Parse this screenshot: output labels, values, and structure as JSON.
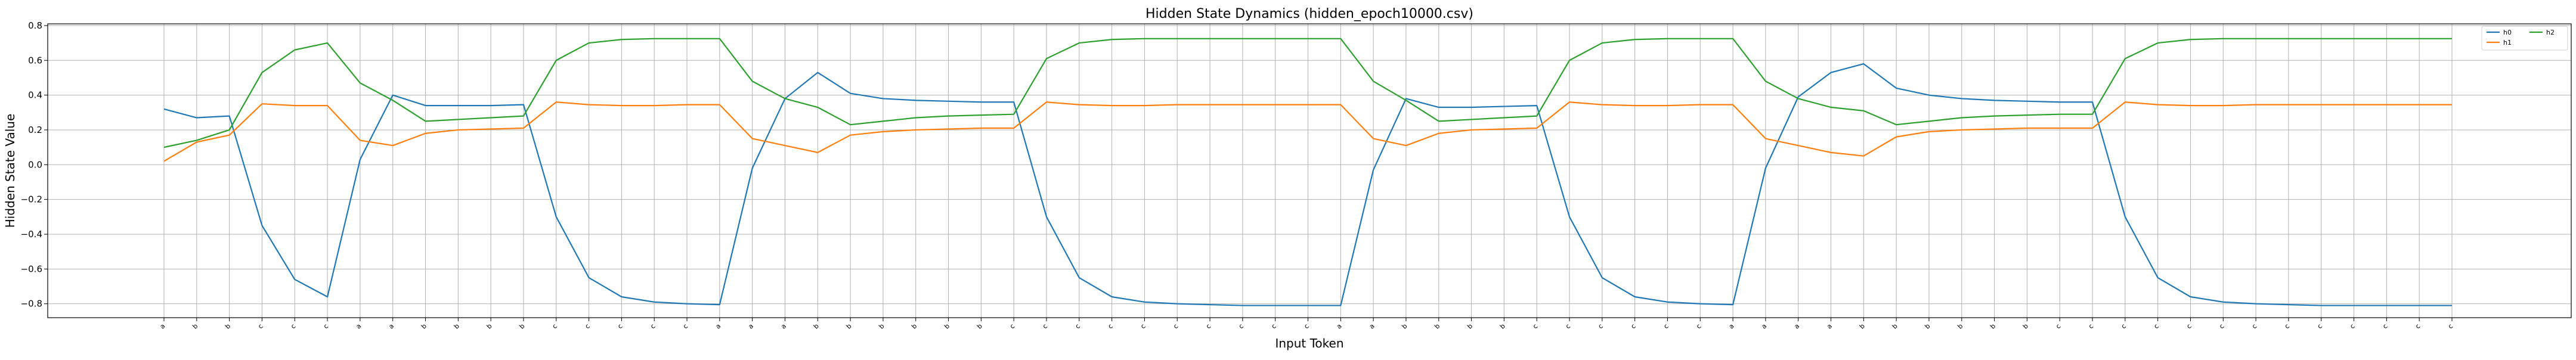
{
  "chart_data": {
    "type": "line",
    "title": "Hidden State Dynamics (hidden_epoch10000.csv)",
    "xlabel": "Input Token",
    "ylabel": "Hidden State Value",
    "ylim": [
      -0.88,
      0.81
    ],
    "yticks": [
      -0.8,
      -0.6,
      -0.4,
      -0.2,
      0.0,
      0.2,
      0.4,
      0.6,
      0.8
    ],
    "ytick_labels": [
      "−0.8",
      "−0.6",
      "−0.4",
      "−0.2",
      "0.0",
      "0.2",
      "0.4",
      "0.6",
      "0.8"
    ],
    "grid": true,
    "legend_position": "top-right",
    "categories": [
      "a",
      "b",
      "b",
      "c",
      "c",
      "c",
      "a",
      "a",
      "b",
      "b",
      "b",
      "b",
      "c",
      "c",
      "c",
      "c",
      "c",
      "a",
      "a",
      "a",
      "b",
      "b",
      "b",
      "b",
      "b",
      "b",
      "c",
      "c",
      "c",
      "c",
      "c",
      "c",
      "c",
      "c",
      "c",
      "c",
      "a",
      "a",
      "b",
      "b",
      "b",
      "b",
      "c",
      "c",
      "c",
      "c",
      "c",
      "c",
      "a",
      "a",
      "a",
      "a",
      "b",
      "b",
      "b",
      "b",
      "b",
      "b",
      "c",
      "c",
      "c",
      "c",
      "c",
      "c",
      "c",
      "c",
      "c",
      "c",
      "c",
      "c",
      "c"
    ],
    "series": [
      {
        "name": "h0",
        "color": "#1f77b4",
        "values": [
          0.32,
          0.27,
          0.28,
          -0.35,
          -0.66,
          -0.76,
          0.03,
          0.4,
          0.34,
          0.34,
          0.34,
          0.345,
          -0.3,
          -0.65,
          -0.76,
          -0.79,
          -0.8,
          -0.805,
          -0.02,
          0.38,
          0.53,
          0.41,
          0.38,
          0.37,
          0.365,
          0.36,
          0.36,
          -0.3,
          -0.65,
          -0.76,
          -0.79,
          -0.8,
          -0.805,
          -0.81,
          -0.81,
          -0.81,
          -0.81,
          -0.03,
          0.38,
          0.33,
          0.33,
          0.335,
          0.34,
          -0.3,
          -0.65,
          -0.76,
          -0.79,
          -0.8,
          -0.805,
          -0.02,
          0.39,
          0.53,
          0.58,
          0.44,
          0.4,
          0.38,
          0.37,
          0.365,
          0.36,
          0.36,
          -0.3,
          -0.65,
          -0.76,
          -0.79,
          -0.8,
          -0.805,
          -0.81,
          -0.81,
          -0.81,
          -0.81,
          -0.81
        ]
      },
      {
        "name": "h1",
        "color": "#ff7f0e",
        "values": [
          0.02,
          0.13,
          0.17,
          0.35,
          0.34,
          0.34,
          0.14,
          0.11,
          0.18,
          0.2,
          0.205,
          0.21,
          0.36,
          0.345,
          0.34,
          0.34,
          0.345,
          0.345,
          0.15,
          0.11,
          0.07,
          0.17,
          0.19,
          0.2,
          0.205,
          0.21,
          0.21,
          0.36,
          0.345,
          0.34,
          0.34,
          0.345,
          0.345,
          0.345,
          0.345,
          0.345,
          0.345,
          0.15,
          0.11,
          0.18,
          0.2,
          0.205,
          0.21,
          0.36,
          0.345,
          0.34,
          0.34,
          0.345,
          0.345,
          0.15,
          0.11,
          0.07,
          0.05,
          0.16,
          0.19,
          0.2,
          0.205,
          0.21,
          0.21,
          0.21,
          0.36,
          0.345,
          0.34,
          0.34,
          0.345,
          0.345,
          0.345,
          0.345,
          0.345,
          0.345,
          0.345
        ]
      },
      {
        "name": "h2",
        "color": "#2ca02c",
        "values": [
          0.1,
          0.14,
          0.2,
          0.53,
          0.66,
          0.7,
          0.47,
          0.37,
          0.25,
          0.26,
          0.27,
          0.28,
          0.6,
          0.7,
          0.72,
          0.725,
          0.725,
          0.725,
          0.48,
          0.38,
          0.33,
          0.23,
          0.25,
          0.27,
          0.28,
          0.285,
          0.29,
          0.61,
          0.7,
          0.72,
          0.725,
          0.725,
          0.725,
          0.725,
          0.725,
          0.725,
          0.725,
          0.48,
          0.37,
          0.25,
          0.26,
          0.27,
          0.28,
          0.6,
          0.7,
          0.72,
          0.725,
          0.725,
          0.725,
          0.48,
          0.38,
          0.33,
          0.31,
          0.23,
          0.25,
          0.27,
          0.28,
          0.285,
          0.29,
          0.29,
          0.61,
          0.7,
          0.72,
          0.725,
          0.725,
          0.725,
          0.725,
          0.725,
          0.725,
          0.725,
          0.725
        ]
      }
    ]
  }
}
